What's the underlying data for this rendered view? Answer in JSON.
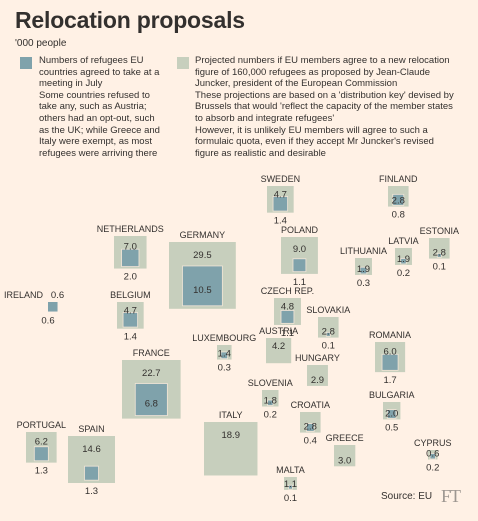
{
  "header": {
    "title": "Relocation proposals",
    "subtitle": "'000 people"
  },
  "legend": {
    "agreed": {
      "color": "#7fa2ab",
      "lines": [
        "Numbers of refugees EU countries agreed to take at a meeting in July",
        "Some countries refused to take any, such as Austria; others had an opt-out, such as the UK; while Greece and Italy were exempt, as most refugees were arriving there"
      ]
    },
    "projected": {
      "color": "#c7cfbd",
      "lines": [
        "Projected numbers if EU members agree to a new relocation figure of 160,000 refugees as proposed by Jean-Claude Juncker, president of the European Commission",
        "These projections are based on a 'distribution key' devised by Brussels that would 'reflect the capacity of the member states to absorb and integrate refugees'",
        "However, it is unlikely EU members will agree to such a formulaic quota, even if they accept Mr Juncker's revised figure as realistic and desirable"
      ]
    }
  },
  "chart_data": {
    "type": "proportional-square map",
    "unit": "'000 people",
    "series": [
      {
        "name": "Agreed in July",
        "color": "#7fa2ab"
      },
      {
        "name": "Projected under 160,000 relocation figure",
        "color": "#c7cfbd"
      }
    ],
    "countries": [
      {
        "name": "SWEDEN",
        "projected": 4.7,
        "agreed": 1.4
      },
      {
        "name": "FINLAND",
        "projected": 2.8,
        "agreed": 0.8
      },
      {
        "name": "NETHERLANDS",
        "projected": 7.0,
        "agreed": 2.0
      },
      {
        "name": "GERMANY",
        "projected": 29.5,
        "agreed": 10.5
      },
      {
        "name": "POLAND",
        "projected": 9.0,
        "agreed": 1.1
      },
      {
        "name": "ESTONIA",
        "projected": 2.8,
        "agreed": 0.1
      },
      {
        "name": "LATVIA",
        "projected": 1.9,
        "agreed": 0.2
      },
      {
        "name": "LITHUANIA",
        "projected": 1.9,
        "agreed": 0.3
      },
      {
        "name": "IRELAND",
        "projected": 0.6,
        "agreed": 0.6
      },
      {
        "name": "BELGIUM",
        "projected": 4.7,
        "agreed": 1.4
      },
      {
        "name": "CZECH REP.",
        "projected": 4.8,
        "agreed": 1.1
      },
      {
        "name": "SLOVAKIA",
        "projected": 2.8,
        "agreed": 0.1
      },
      {
        "name": "LUXEMBOURG",
        "projected": 1.4,
        "agreed": 0.3
      },
      {
        "name": "AUSTRIA",
        "projected": 4.2,
        "agreed": null
      },
      {
        "name": "FRANCE",
        "projected": 22.7,
        "agreed": 6.8
      },
      {
        "name": "HUNGARY",
        "projected": 2.9,
        "agreed": null
      },
      {
        "name": "ROMANIA",
        "projected": 6.0,
        "agreed": 1.7
      },
      {
        "name": "SLOVENIA",
        "projected": 1.8,
        "agreed": 0.2
      },
      {
        "name": "CROATIA",
        "projected": 2.8,
        "agreed": 0.4
      },
      {
        "name": "BULGARIA",
        "projected": 2.0,
        "agreed": 0.5
      },
      {
        "name": "ITALY",
        "projected": 18.9,
        "agreed": null
      },
      {
        "name": "GREECE",
        "projected": 3.0,
        "agreed": null
      },
      {
        "name": "PORTUGAL",
        "projected": 6.2,
        "agreed": 1.3
      },
      {
        "name": "SPAIN",
        "projected": 14.6,
        "agreed": 1.3
      },
      {
        "name": "CYPRUS",
        "projected": 0.6,
        "agreed": 0.2
      },
      {
        "name": "MALTA",
        "projected": 1.1,
        "agreed": 0.1
      }
    ]
  },
  "footer": {
    "source": "Source: EU",
    "logo": "FT"
  }
}
